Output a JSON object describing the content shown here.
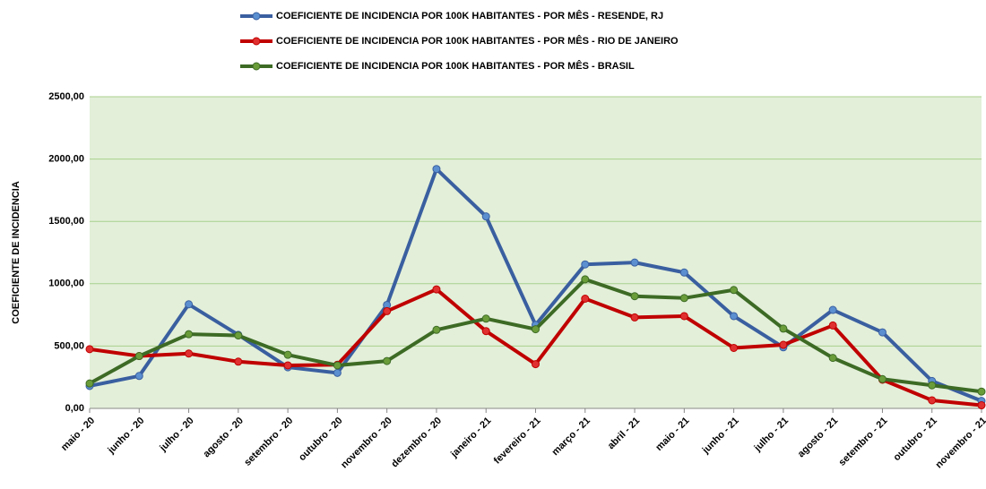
{
  "chart_data": {
    "type": "line",
    "y_label": "COEFICIENTE DE INCIDENCIA",
    "categories": [
      "maio - 20",
      "junho - 20",
      "julho - 20",
      "agosto - 20",
      "setembro - 20",
      "outubro - 20",
      "novembro - 20",
      "dezembro - 20",
      "janeiro - 21",
      "fevereiro - 21",
      "março - 21",
      "abril - 21",
      "maio - 21",
      "junho - 21",
      "julho - 21",
      "agosto - 21",
      "setembro - 21",
      "outubro - 21",
      "novembro - 21"
    ],
    "series": [
      {
        "name": "COEFICIENTE DE INCIDENCIA POR 100K HABITANTES - POR MÊS - RESENDE, RJ",
        "color": "#3a5fa0",
        "marker_color": "#5b8fd0",
        "values": [
          180,
          260,
          835,
          590,
          330,
          285,
          830,
          1920,
          1540,
          670,
          1155,
          1170,
          1090,
          740,
          490,
          790,
          610,
          220,
          60
        ]
      },
      {
        "name": "COEFICIENTE DE INCIDENCIA POR 100K HABITANTES - POR MÊS - RIO DE JANEIRO",
        "color": "#c00000",
        "marker_color": "#e03030",
        "values": [
          475,
          420,
          440,
          375,
          345,
          350,
          780,
          955,
          620,
          355,
          880,
          730,
          740,
          485,
          510,
          665,
          230,
          65,
          25
        ]
      },
      {
        "name": "COEFICIENTE DE INCIDENCIA POR 100K HABITANTES - POR MÊS - BRASIL",
        "color": "#3d6b25",
        "marker_color": "#6a9c3a",
        "values": [
          200,
          420,
          595,
          585,
          430,
          345,
          380,
          630,
          720,
          635,
          1035,
          900,
          885,
          950,
          640,
          405,
          235,
          185,
          135
        ]
      }
    ],
    "ylim": [
      0,
      2500
    ],
    "yticks": [
      {
        "value": 0,
        "label": "0,00"
      },
      {
        "value": 500,
        "label": "500,00"
      },
      {
        "value": 1000,
        "label": "1000,00"
      },
      {
        "value": 1500,
        "label": "1500,00"
      },
      {
        "value": 2000,
        "label": "2000,00"
      },
      {
        "value": 2500,
        "label": "2500,00"
      }
    ],
    "grid": true,
    "plot_background": "#e3efd9",
    "grid_color": "#a8d08d"
  }
}
